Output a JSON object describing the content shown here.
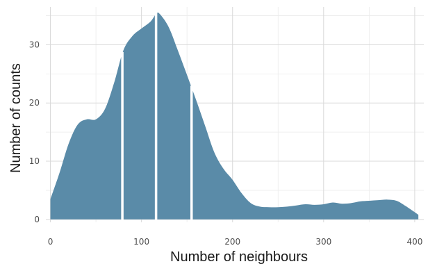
{
  "chart_data": {
    "type": "area",
    "xlabel": "Number of neighbours",
    "ylabel": "Number of counts",
    "xlim": [
      -5,
      410
    ],
    "ylim": [
      -0.5,
      36.5
    ],
    "x_ticks": [
      0,
      100,
      200,
      300,
      400
    ],
    "y_ticks": [
      0,
      10,
      20,
      30
    ],
    "grid": true,
    "fill_color": "#5a8ba8",
    "divider_color": "#ffffff",
    "quantile_lines": [
      79,
      116,
      155
    ],
    "series": [
      {
        "x": [
          0,
          10,
          20,
          30,
          40,
          50,
          60,
          70,
          80,
          90,
          100,
          110,
          116,
          120,
          130,
          140,
          150,
          160,
          170,
          180,
          190,
          200,
          210,
          220,
          230,
          240,
          250,
          260,
          270,
          280,
          290,
          300,
          310,
          320,
          330,
          340,
          350,
          360,
          370,
          380,
          390,
          404
        ],
        "y": [
          3.5,
          8,
          13,
          16.3,
          17.2,
          17.2,
          19,
          23.5,
          29,
          31.5,
          32.8,
          34,
          35.3,
          35.3,
          33,
          29,
          24.8,
          20.5,
          16,
          11.5,
          8.7,
          6.8,
          4.5,
          2.8,
          2.2,
          2.1,
          2.1,
          2.2,
          2.4,
          2.6,
          2.5,
          2.6,
          2.9,
          2.7,
          2.8,
          3.1,
          3.2,
          3.3,
          3.4,
          3.2,
          2.3,
          0.8
        ]
      }
    ]
  }
}
